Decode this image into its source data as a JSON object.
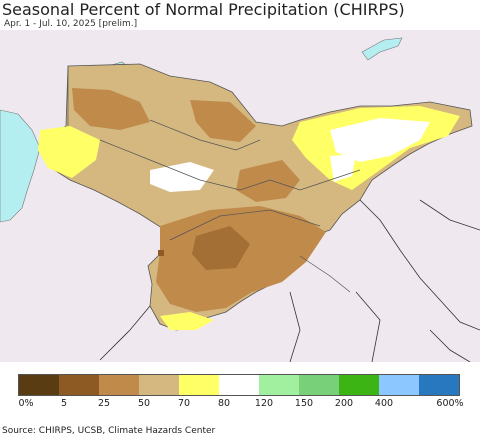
{
  "title": "Seasonal Percent of Normal Precipitation (CHIRPS)",
  "subtitle": "Apr. 1 - Jul. 10, 2025 [prelim.]",
  "source": "Source: CHIRPS, UCSB, Climate Hazards Center",
  "legend": {
    "colors": [
      "#5a3c12",
      "#8c5a22",
      "#c08a4a",
      "#d4b880",
      "#ffff66",
      "#ffffff",
      "#a0f0a0",
      "#78d078",
      "#3cb414",
      "#8cc8ff",
      "#2878c0"
    ],
    "labels": [
      "0%",
      "5",
      "25",
      "50",
      "70",
      "80",
      "120",
      "150",
      "200",
      "400",
      "600%"
    ]
  },
  "map_colors": {
    "background": "#efe9ef",
    "water": "#b4eef0",
    "border": "#555555",
    "dry_dark": "#8c5a22",
    "dry_mid": "#c08a4a",
    "dry_light": "#d4b880",
    "near_normal": "#ffff66",
    "normal": "#ffffff"
  }
}
